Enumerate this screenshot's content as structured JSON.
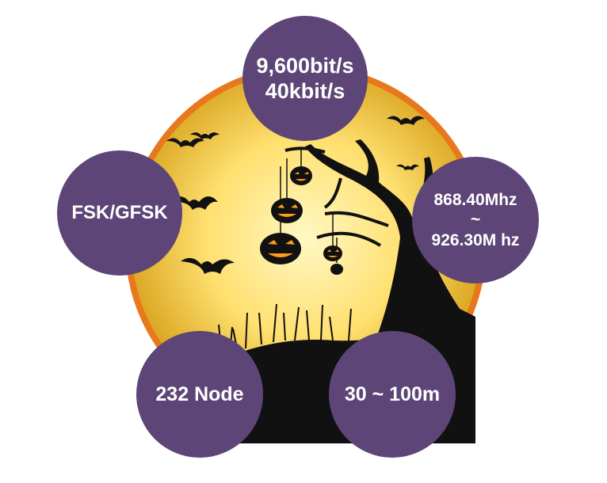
{
  "colors": {
    "bubble": "#5d4677",
    "moon_ring": "#e8781e",
    "moon_core": "#ffe98a",
    "moon_edge": "#d9a520",
    "silhouette": "#111111"
  },
  "bubbles": {
    "top": {
      "line1": "9,600bit/s",
      "line2": "40kbit/s"
    },
    "left": {
      "line1": "FSK/GFSK"
    },
    "right": {
      "line1": "868.40Mhz",
      "line2": "~",
      "line3": "926.30M hz"
    },
    "bottom_left": {
      "line1": "232 Node"
    },
    "bottom_right": {
      "line1": "30 ~ 100m"
    }
  }
}
